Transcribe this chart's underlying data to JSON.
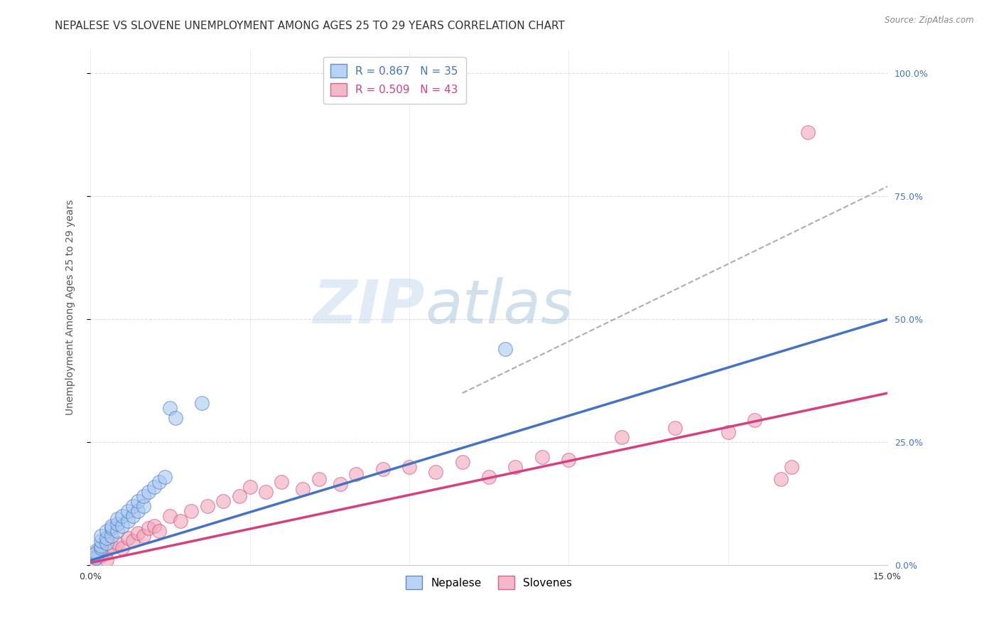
{
  "title": "NEPALESE VS SLOVENE UNEMPLOYMENT AMONG AGES 25 TO 29 YEARS CORRELATION CHART",
  "source": "Source: ZipAtlas.com",
  "ylabel": "Unemployment Among Ages 25 to 29 years",
  "x_min": 0.0,
  "x_max": 0.15,
  "y_min": 0.0,
  "y_max": 1.05,
  "x_ticks": [
    0.0,
    0.03,
    0.06,
    0.09,
    0.12,
    0.15
  ],
  "x_tick_labels": [
    "0.0%",
    "",
    "",
    "",
    "",
    "15.0%"
  ],
  "y_ticks": [
    0.0,
    0.25,
    0.5,
    0.75,
    1.0
  ],
  "y_tick_labels_right": [
    "0.0%",
    "25.0%",
    "50.0%",
    "75.0%",
    "100.0%"
  ],
  "nepalese_color": "#a8c8f0",
  "slovene_color": "#f0a8b8",
  "nepalese_line_color": "#4472c4",
  "slovene_line_color": "#d44080",
  "watermark_zip": "ZIP",
  "watermark_atlas": "atlas",
  "nepalese_x": [
    0.001,
    0.001,
    0.001,
    0.001,
    0.002,
    0.002,
    0.002,
    0.002,
    0.003,
    0.003,
    0.003,
    0.004,
    0.004,
    0.004,
    0.005,
    0.005,
    0.005,
    0.006,
    0.006,
    0.007,
    0.007,
    0.008,
    0.008,
    0.009,
    0.009,
    0.01,
    0.01,
    0.011,
    0.012,
    0.013,
    0.014,
    0.015,
    0.016,
    0.021,
    0.078
  ],
  "nepalese_y": [
    0.02,
    0.03,
    0.015,
    0.025,
    0.035,
    0.04,
    0.05,
    0.06,
    0.045,
    0.055,
    0.07,
    0.06,
    0.075,
    0.08,
    0.07,
    0.085,
    0.095,
    0.08,
    0.1,
    0.09,
    0.11,
    0.1,
    0.12,
    0.11,
    0.13,
    0.12,
    0.14,
    0.15,
    0.16,
    0.17,
    0.18,
    0.32,
    0.3,
    0.33,
    0.44
  ],
  "slovene_x": [
    0.001,
    0.001,
    0.002,
    0.003,
    0.003,
    0.004,
    0.005,
    0.006,
    0.007,
    0.008,
    0.009,
    0.01,
    0.011,
    0.012,
    0.013,
    0.015,
    0.017,
    0.019,
    0.022,
    0.025,
    0.028,
    0.03,
    0.033,
    0.036,
    0.04,
    0.043,
    0.047,
    0.05,
    0.055,
    0.06,
    0.065,
    0.07,
    0.075,
    0.08,
    0.085,
    0.09,
    0.1,
    0.11,
    0.12,
    0.125,
    0.13,
    0.132,
    0.135
  ],
  "slovene_y": [
    0.015,
    0.025,
    0.02,
    0.03,
    0.01,
    0.04,
    0.045,
    0.035,
    0.055,
    0.05,
    0.065,
    0.06,
    0.075,
    0.08,
    0.07,
    0.1,
    0.09,
    0.11,
    0.12,
    0.13,
    0.14,
    0.16,
    0.15,
    0.17,
    0.155,
    0.175,
    0.165,
    0.185,
    0.195,
    0.2,
    0.19,
    0.21,
    0.18,
    0.2,
    0.22,
    0.215,
    0.26,
    0.28,
    0.27,
    0.295,
    0.175,
    0.2,
    0.88
  ],
  "nep_line_x0": 0.0,
  "nep_line_y0": 0.01,
  "nep_line_x1": 0.15,
  "nep_line_y1": 0.5,
  "slo_line_x0": 0.0,
  "slo_line_y0": 0.005,
  "slo_line_x1": 0.15,
  "slo_line_y1": 0.35,
  "dash_line_x0": 0.07,
  "dash_line_y0": 0.35,
  "dash_line_x1": 0.15,
  "dash_line_y1": 0.77,
  "background_color": "#ffffff",
  "grid_color": "#dddddd",
  "title_fontsize": 11,
  "axis_label_fontsize": 10,
  "tick_fontsize": 9,
  "legend_fontsize": 11
}
